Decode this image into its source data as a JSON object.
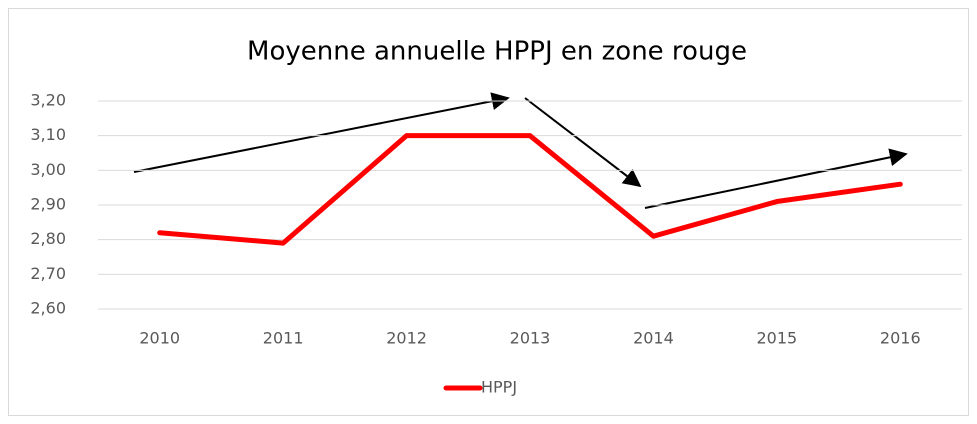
{
  "chart_data": {
    "type": "line",
    "title": "Moyenne annuelle HPPJ en zone rouge",
    "categories": [
      "2010",
      "2011",
      "2012",
      "2013",
      "2014",
      "2015",
      "2016"
    ],
    "series": [
      {
        "name": "HPPJ",
        "color": "#ff0000",
        "values": [
          2.82,
          2.79,
          3.1,
          3.1,
          2.81,
          2.91,
          2.96
        ]
      }
    ],
    "ylim": [
      2.6,
      3.2
    ],
    "yticks": [
      {
        "value": 2.6,
        "label": "2,60"
      },
      {
        "value": 2.7,
        "label": "2,70"
      },
      {
        "value": 2.8,
        "label": "2,80"
      },
      {
        "value": 2.9,
        "label": "2,90"
      },
      {
        "value": 3.0,
        "label": "3,00"
      },
      {
        "value": 3.1,
        "label": "3,10"
      },
      {
        "value": 3.2,
        "label": "3,20"
      }
    ],
    "grid": true,
    "legend": "bottom"
  }
}
